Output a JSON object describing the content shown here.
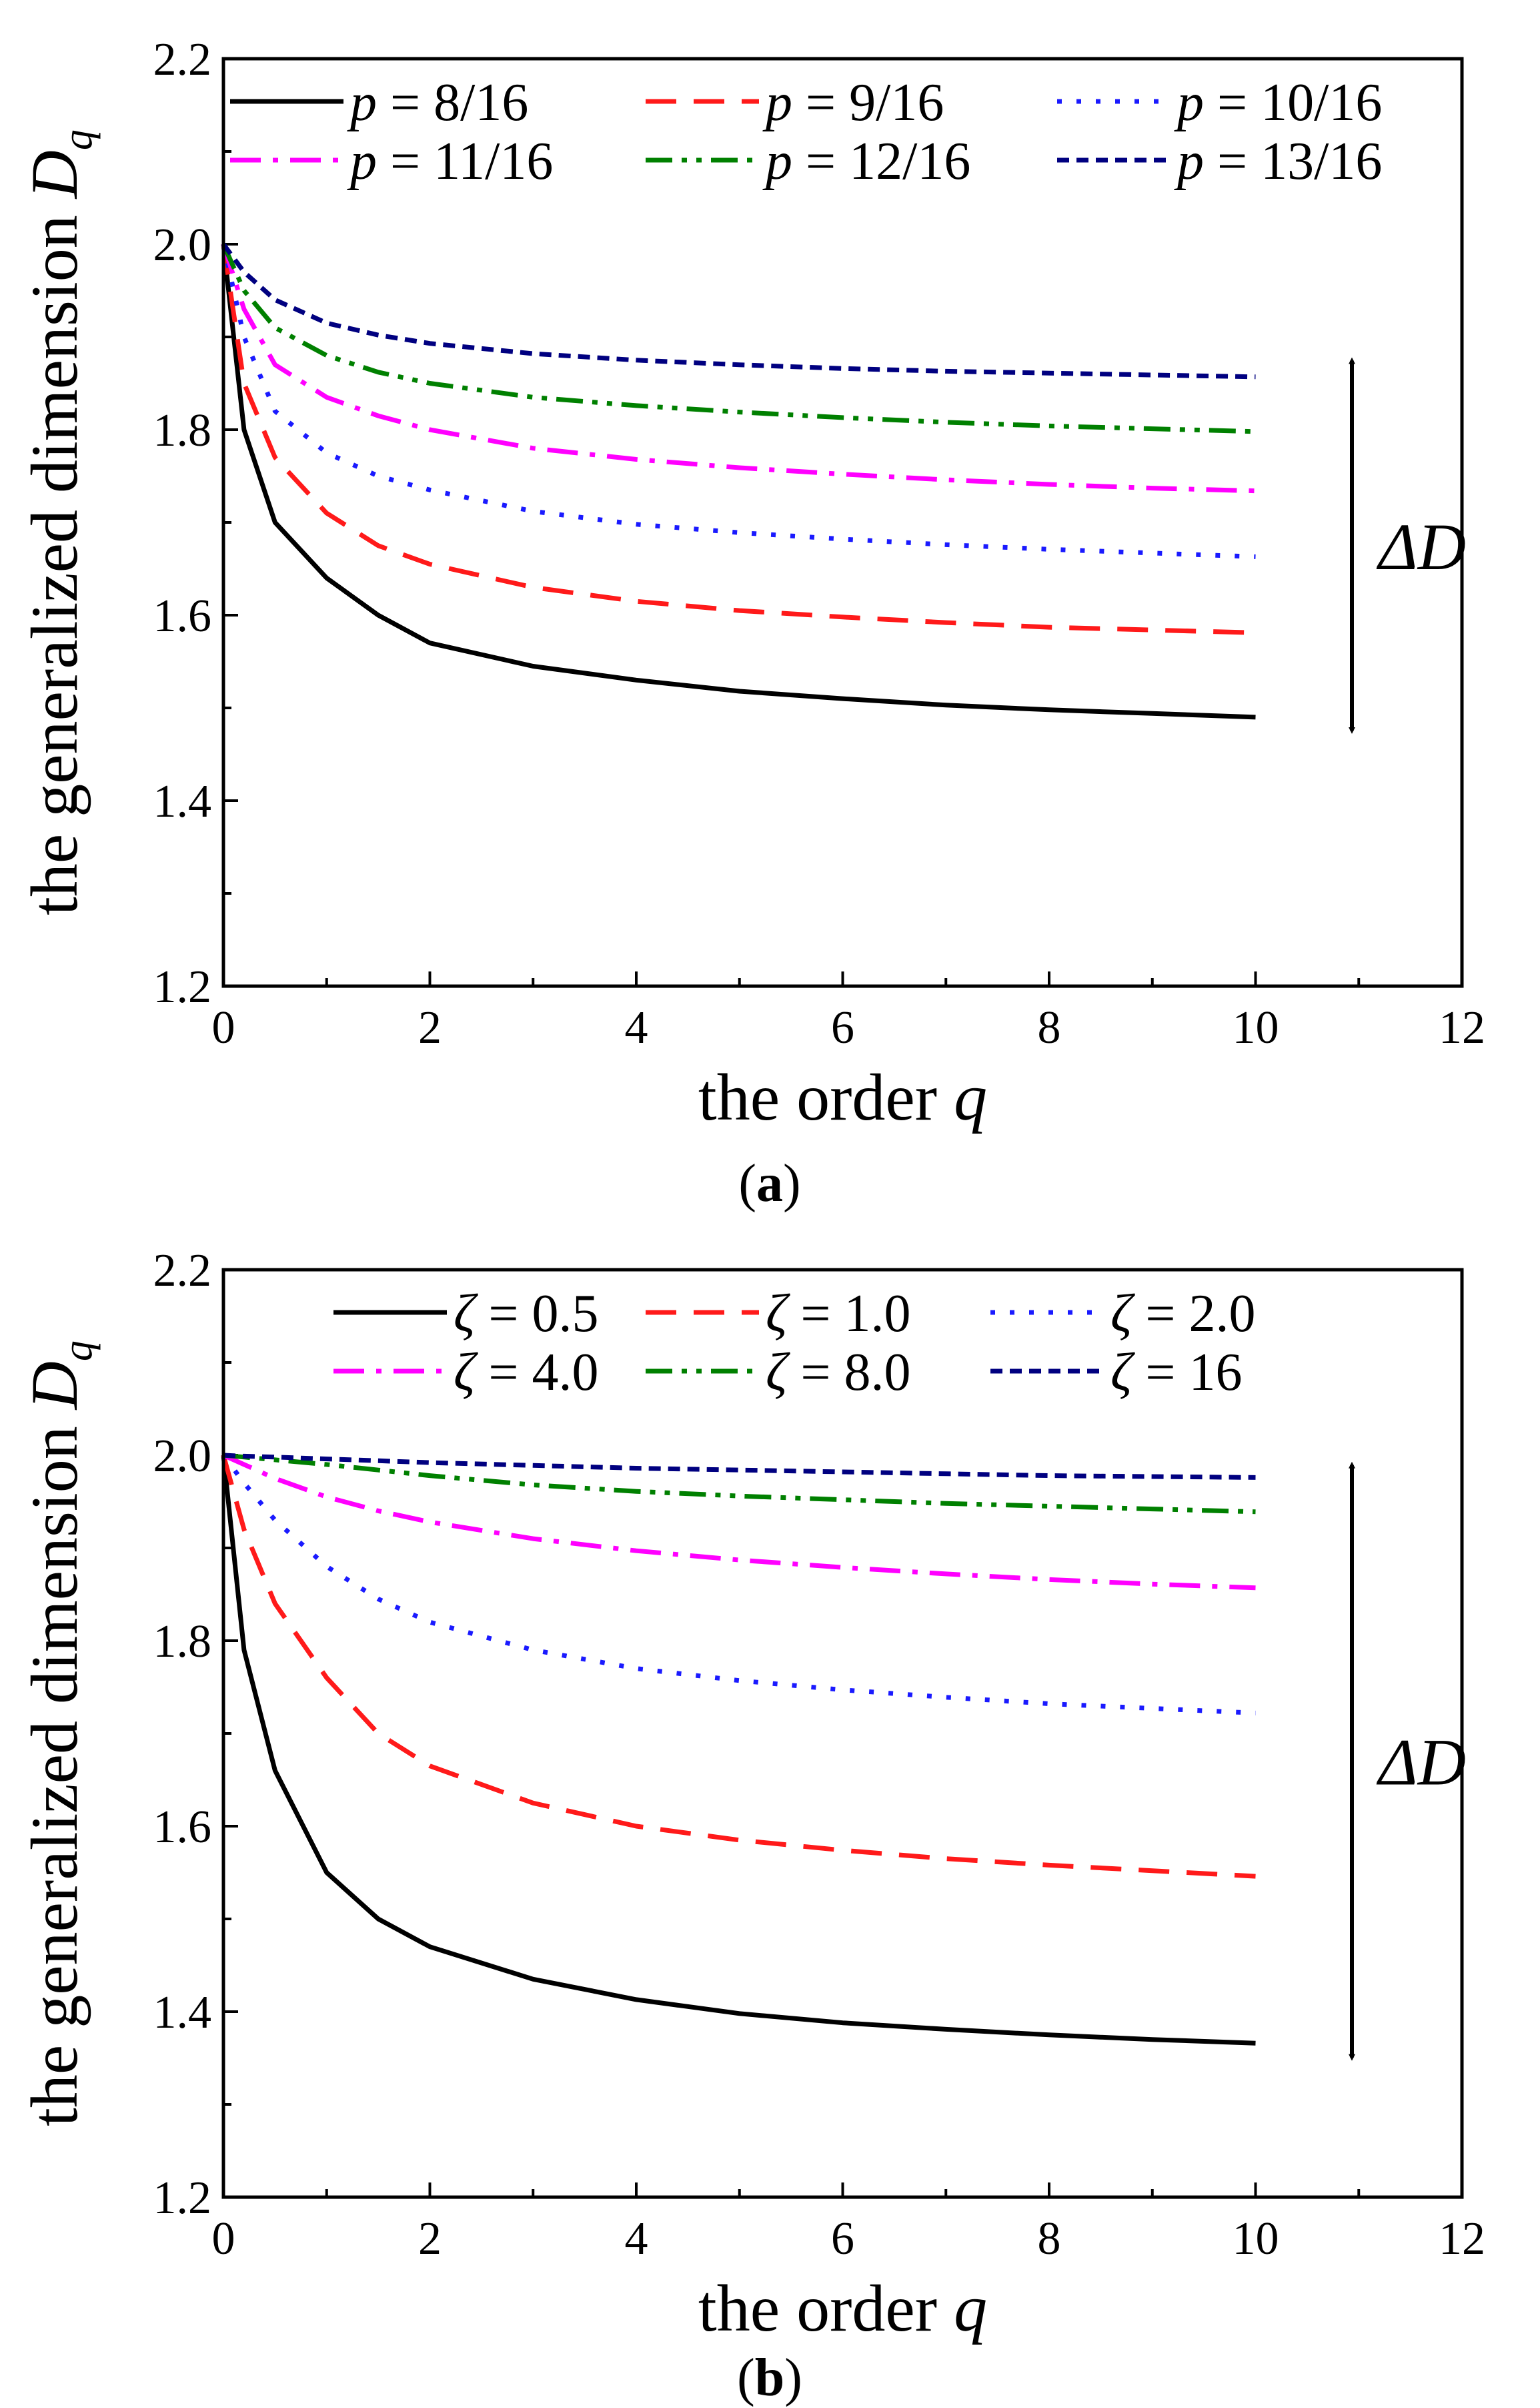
{
  "figure": {
    "panels": [
      {
        "caption_letter": "a"
      },
      {
        "caption_letter": "b"
      }
    ]
  },
  "chart_data": [
    {
      "type": "line",
      "panel": "a",
      "xlabel": "the order",
      "xlabel_var": "q",
      "ylabel": "the generalized dimension",
      "ylabel_var": "D",
      "ylabel_sub": "q",
      "xlim": [
        0,
        12
      ],
      "ylim": [
        1.2,
        2.2
      ],
      "xticks": [
        "0",
        "2",
        "4",
        "6",
        "8",
        "10",
        "12"
      ],
      "yticks": [
        "1.2",
        "1.4",
        "1.6",
        "1.8",
        "2.0",
        "2.2"
      ],
      "annotation": "ΔD",
      "annotation_range": [
        1.49,
        1.86
      ],
      "x": [
        0,
        0.2,
        0.5,
        1,
        1.5,
        2,
        3,
        4,
        5,
        6,
        7,
        8,
        9,
        10
      ],
      "series": [
        {
          "name": "p = 8/16",
          "var": "p",
          "value_text": " = 8/16",
          "color": "#000000",
          "dash": "solid",
          "values": [
            2.0,
            1.8,
            1.7,
            1.64,
            1.6,
            1.57,
            1.545,
            1.53,
            1.518,
            1.51,
            1.503,
            1.498,
            1.494,
            1.49
          ]
        },
        {
          "name": "p = 9/16",
          "var": "p",
          "value_text": " = 9/16",
          "color": "#ff1a1a",
          "dash": "dash",
          "values": [
            2.0,
            1.85,
            1.77,
            1.71,
            1.675,
            1.655,
            1.63,
            1.615,
            1.605,
            1.598,
            1.592,
            1.587,
            1.584,
            1.581
          ]
        },
        {
          "name": "p = 10/16",
          "var": "p",
          "value_text": " = 10/16",
          "color": "#1a1aff",
          "dash": "dot",
          "values": [
            2.0,
            1.9,
            1.82,
            1.775,
            1.75,
            1.735,
            1.712,
            1.698,
            1.689,
            1.682,
            1.676,
            1.671,
            1.667,
            1.663
          ]
        },
        {
          "name": "p = 11/16",
          "var": "p",
          "value_text": " = 11/16",
          "color": "#ff00ff",
          "dash": "dashdot",
          "values": [
            2.0,
            1.93,
            1.87,
            1.835,
            1.815,
            1.8,
            1.78,
            1.768,
            1.759,
            1.752,
            1.746,
            1.741,
            1.737,
            1.734
          ]
        },
        {
          "name": "p = 12/16",
          "var": "p",
          "value_text": " = 12/16",
          "color": "#008000",
          "dash": "dashdotdot",
          "values": [
            2.0,
            1.95,
            1.91,
            1.88,
            1.862,
            1.85,
            1.835,
            1.826,
            1.819,
            1.813,
            1.808,
            1.804,
            1.801,
            1.798
          ]
        },
        {
          "name": "p = 13/16",
          "var": "p",
          "value_text": " = 13/16",
          "color": "#000080",
          "dash": "shortdash",
          "values": [
            2.0,
            1.97,
            1.94,
            1.915,
            1.902,
            1.893,
            1.882,
            1.875,
            1.87,
            1.866,
            1.863,
            1.861,
            1.859,
            1.857
          ]
        }
      ]
    },
    {
      "type": "line",
      "panel": "b",
      "xlabel": "the order",
      "xlabel_var": "q",
      "ylabel": "the generalized dimension",
      "ylabel_var": "D",
      "ylabel_sub": "q",
      "xlim": [
        0,
        12
      ],
      "ylim": [
        1.2,
        2.2
      ],
      "xticks": [
        "0",
        "2",
        "4",
        "6",
        "8",
        "10",
        "12"
      ],
      "yticks": [
        "1.2",
        "1.4",
        "1.6",
        "1.8",
        "2.0",
        "2.2"
      ],
      "annotation": "ΔD",
      "annotation_range": [
        1.365,
        1.975
      ],
      "x": [
        0,
        0.2,
        0.5,
        1,
        1.5,
        2,
        3,
        4,
        5,
        6,
        7,
        8,
        9,
        10
      ],
      "series": [
        {
          "name": "ζ = 0.5",
          "var": "ζ",
          "value_text": " = 0.5",
          "color": "#000000",
          "dash": "solid",
          "values": [
            2.0,
            1.79,
            1.66,
            1.55,
            1.5,
            1.47,
            1.435,
            1.413,
            1.398,
            1.388,
            1.381,
            1.375,
            1.37,
            1.366
          ]
        },
        {
          "name": "ζ = 1.0",
          "var": "ζ",
          "value_text": " = 1.0",
          "color": "#ff1a1a",
          "dash": "dash",
          "values": [
            2.0,
            1.92,
            1.84,
            1.76,
            1.7,
            1.665,
            1.625,
            1.6,
            1.585,
            1.574,
            1.565,
            1.558,
            1.552,
            1.546
          ]
        },
        {
          "name": "ζ = 2.0",
          "var": "ζ",
          "value_text": " = 2.0",
          "color": "#1a1aff",
          "dash": "dot",
          "values": [
            2.0,
            1.97,
            1.93,
            1.88,
            1.845,
            1.82,
            1.79,
            1.77,
            1.757,
            1.747,
            1.739,
            1.732,
            1.727,
            1.722
          ]
        },
        {
          "name": "ζ = 4.0",
          "var": "ζ",
          "value_text": " = 4.0",
          "color": "#ff00ff",
          "dash": "dashdot",
          "values": [
            2.0,
            1.99,
            1.975,
            1.955,
            1.94,
            1.928,
            1.91,
            1.897,
            1.887,
            1.879,
            1.872,
            1.866,
            1.861,
            1.857
          ]
        },
        {
          "name": "ζ = 8.0",
          "var": "ζ",
          "value_text": " = 8.0",
          "color": "#008000",
          "dash": "dashdotdot",
          "values": [
            2.0,
            1.998,
            1.995,
            1.99,
            1.984,
            1.978,
            1.968,
            1.961,
            1.956,
            1.952,
            1.948,
            1.945,
            1.942,
            1.939
          ]
        },
        {
          "name": "ζ = 16",
          "var": "ζ",
          "value_text": " = 16",
          "color": "#000080",
          "dash": "shortdash",
          "values": [
            2.0,
            1.999,
            1.998,
            1.996,
            1.994,
            1.992,
            1.989,
            1.986,
            1.984,
            1.982,
            1.98,
            1.978,
            1.977,
            1.976
          ]
        }
      ]
    }
  ]
}
